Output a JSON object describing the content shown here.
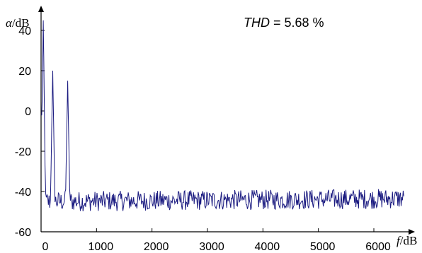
{
  "chart_data": {
    "type": "line",
    "title": "",
    "xlabel_var": "f",
    "xlabel_unit": "/dB",
    "ylabel_var": "α",
    "ylabel_unit": "/dB",
    "xlim": [
      0,
      6600
    ],
    "ylim": [
      -60,
      45
    ],
    "x_ticks": [
      0,
      1000,
      2000,
      3000,
      4000,
      5000,
      6000
    ],
    "x_tick_labels": [
      "0",
      "1000",
      "2000",
      "3000",
      "4000",
      "5000",
      "6000"
    ],
    "y_ticks": [
      -60,
      -40,
      -20,
      0,
      20,
      40
    ],
    "y_tick_labels": [
      "-60",
      "-40",
      "-20",
      "0",
      "20",
      "40"
    ],
    "grid": false,
    "legend": "none",
    "annotation": {
      "var": "THD",
      "text": " = 5.68 %"
    },
    "series": [
      {
        "color": "#1a1a80",
        "peaks": [
          {
            "x": 40,
            "y": 45
          },
          {
            "x": 210,
            "y": 20
          },
          {
            "x": 480,
            "y": 15
          }
        ],
        "noise_floor_db": -45,
        "noise_amplitude_db": 5,
        "x_end": 6550
      }
    ]
  }
}
